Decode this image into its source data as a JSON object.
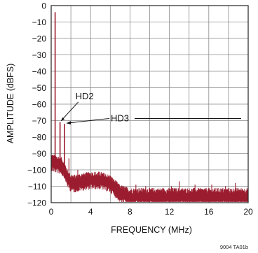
{
  "chart_data": {
    "type": "line",
    "xlabel": "FREQUENCY (MHz)",
    "ylabel": "AMPLITUDE (dBFS)",
    "xlim": [
      0,
      20
    ],
    "ylim": [
      -120,
      0
    ],
    "x_ticks": [
      0,
      4,
      8,
      12,
      16,
      20
    ],
    "y_ticks": [
      0,
      -10,
      -20,
      -30,
      -40,
      -50,
      -60,
      -70,
      -80,
      -90,
      -100,
      -110,
      -120
    ],
    "grid": true,
    "series_color": "#9b1c2e",
    "fundamental": {
      "x": 0.4,
      "y": -4
    },
    "harmonics": [
      {
        "label": "HD2",
        "x": 0.9,
        "y": -71
      },
      {
        "label": "HD3",
        "x": 1.35,
        "y": -72
      }
    ],
    "spurs": [
      {
        "x": 1.8,
        "y": -93
      },
      {
        "x": 2.7,
        "y": -100
      },
      {
        "x": 3.9,
        "y": -104
      },
      {
        "x": 8.6,
        "y": -109
      },
      {
        "x": 9.6,
        "y": -110
      },
      {
        "x": 12.2,
        "y": -110
      },
      {
        "x": 13.0,
        "y": -107
      },
      {
        "x": 14.6,
        "y": -109
      },
      {
        "x": 16.3,
        "y": -109
      },
      {
        "x": 17.7,
        "y": -110
      },
      {
        "x": 18.7,
        "y": -108
      }
    ],
    "noise_floor": {
      "x": [
        0,
        0.5,
        1.0,
        1.3,
        1.6,
        1.9,
        2.3,
        3.0,
        4.0,
        5.0,
        6.0,
        6.5,
        7.0,
        8.0,
        10.0,
        12.0,
        14.0,
        16.0,
        18.0,
        20.0
      ],
      "y": [
        -95,
        -96,
        -97,
        -99,
        -104,
        -107,
        -108,
        -107,
        -106,
        -106,
        -108,
        -111,
        -114,
        -116,
        -116,
        -116,
        -116,
        -116,
        -116,
        -116
      ]
    }
  },
  "figure_id": "9004 TA01b"
}
